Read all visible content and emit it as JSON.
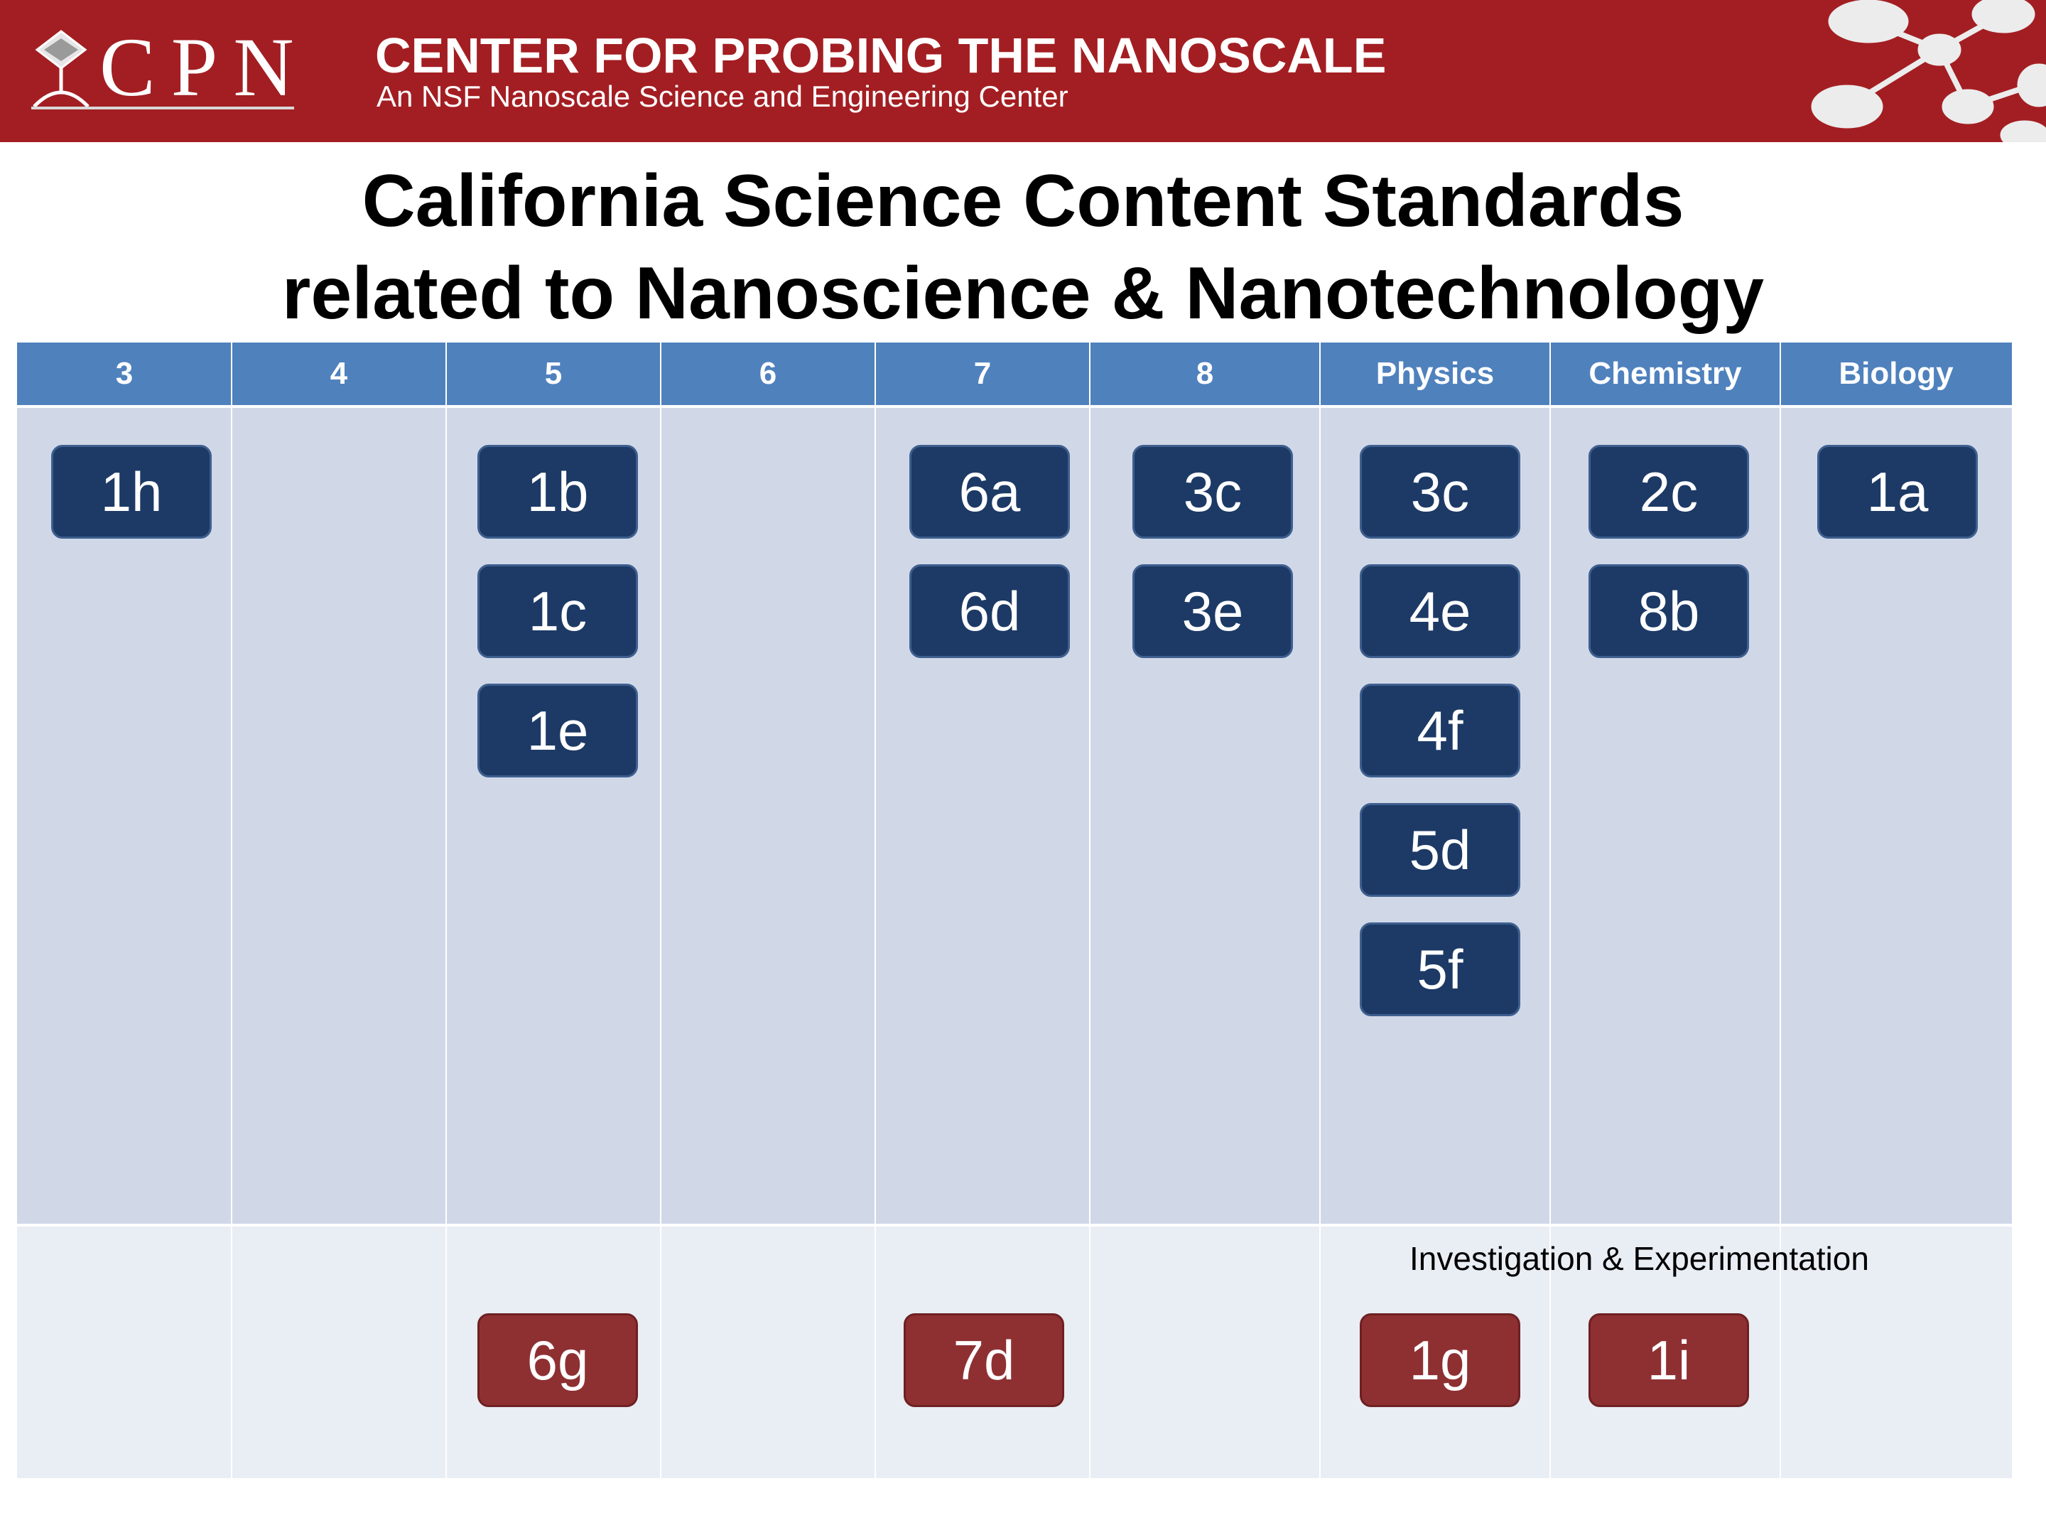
{
  "header": {
    "logo_text": "CPN",
    "org_name": "CENTER FOR PROBING THE NANOSCALE",
    "org_subtitle": "An NSF Nanoscale Science and Engineering Center"
  },
  "title": {
    "line1": "California Science Content Standards",
    "line2": "related to Nanoscience & Nanotechnology"
  },
  "columns": [
    "3",
    "4",
    "5",
    "6",
    "7",
    "8",
    "Physics",
    "Chemistry",
    "Biology"
  ],
  "standards": {
    "grade3": [
      "1h"
    ],
    "grade5": [
      "1b",
      "1c",
      "1e"
    ],
    "grade7": [
      "6a",
      "6d"
    ],
    "grade8": [
      "3c",
      "3e"
    ],
    "physics": [
      "3c",
      "4e",
      "4f",
      "5d",
      "5f"
    ],
    "chemistry": [
      "2c",
      "8b"
    ],
    "biology": [
      "1a"
    ]
  },
  "investigation": {
    "label": "Investigation & Experimentation",
    "grade5": [
      "6g"
    ],
    "grade7": [
      "7d"
    ],
    "physics": [
      "1g"
    ],
    "chemistry": [
      "1i"
    ]
  },
  "colors": {
    "banner": "#a31e22",
    "header_row": "#4f81bd",
    "body_fill": "#d0d8e8",
    "footer_fill": "#e9edf4",
    "content_chip": "#1d3a66",
    "investigation_chip": "#8e3032"
  }
}
